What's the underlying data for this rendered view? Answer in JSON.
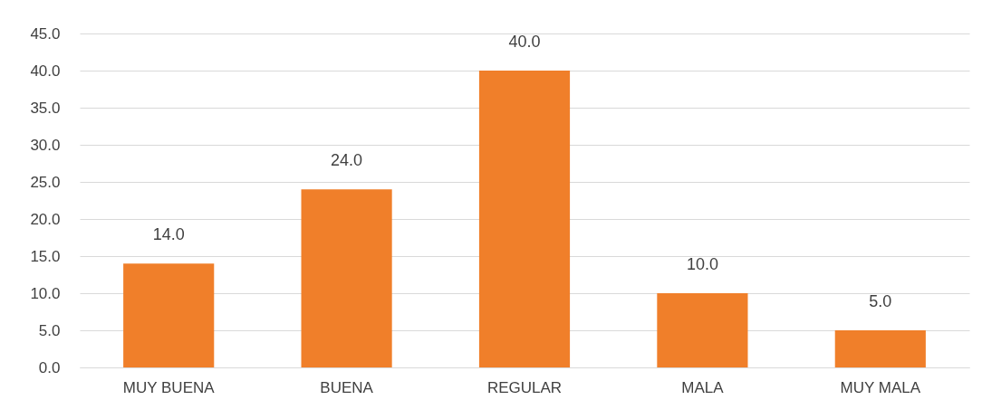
{
  "chart_data": {
    "type": "bar",
    "categories": [
      "MUY BUENA",
      "BUENA",
      "REGULAR",
      "MALA",
      "MUY MALA"
    ],
    "values": [
      14,
      24,
      40,
      10,
      5
    ],
    "value_labels": [
      "14.0",
      "24.0",
      "40.0",
      "10.0",
      "5.0"
    ],
    "color": "#f07f2a",
    "ylim": [
      0,
      45
    ],
    "yticks": [
      {
        "value": 0,
        "label": "0.0"
      },
      {
        "value": 5,
        "label": "5.0"
      },
      {
        "value": 10,
        "label": "10.0"
      },
      {
        "value": 15,
        "label": "15.0"
      },
      {
        "value": 20,
        "label": "20.0"
      },
      {
        "value": 25,
        "label": "25.0"
      },
      {
        "value": 30,
        "label": "30.0"
      },
      {
        "value": 35,
        "label": "35.0"
      },
      {
        "value": 40,
        "label": "40.0"
      },
      {
        "value": 45,
        "label": "45.0"
      }
    ],
    "grid": "y"
  }
}
